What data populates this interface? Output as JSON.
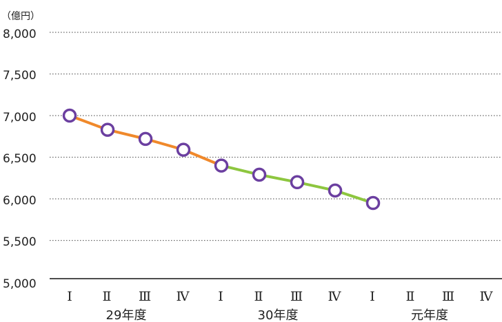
{
  "chart_data": {
    "type": "line",
    "unit": "（億円）",
    "yticks": [
      "8,000",
      "7,500",
      "7,000",
      "6,500",
      "6,000",
      "5,500",
      "5,000"
    ],
    "ylim": [
      5000,
      8000
    ],
    "grid": true,
    "quarter_labels": [
      "Ⅰ",
      "Ⅱ",
      "Ⅲ",
      "Ⅳ",
      "Ⅰ",
      "Ⅱ",
      "Ⅲ",
      "Ⅳ",
      "Ⅰ",
      "Ⅱ",
      "Ⅲ",
      "Ⅳ"
    ],
    "year_labels": [
      "29年度",
      "30年度",
      "元年度"
    ],
    "values": [
      7000,
      6830,
      6720,
      6590,
      6400,
      6290,
      6200,
      6100,
      5950
    ],
    "series_colors": [
      "#f0892b",
      "#8dc63f",
      "#29a9e0"
    ],
    "marker_stroke": "#6b3fa0",
    "marker_fill": "#ffffff"
  }
}
